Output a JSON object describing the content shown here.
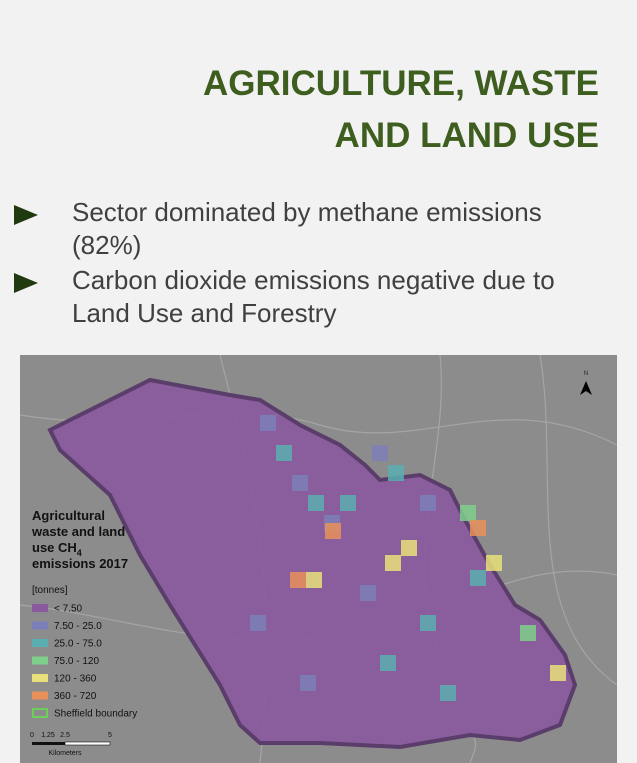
{
  "header": {
    "title_lines": [
      "AGRICULTURE, WASTE",
      "AND LAND USE"
    ]
  },
  "bullets": [
    "Sector dominated by methane emissions (82%)",
    "Carbon dioxide emissions negative due to Land Use and Forestry"
  ],
  "map": {
    "legend": {
      "title_before_subscript": "Agricultural waste and land use CH",
      "subscript": "4",
      "title_after_subscript": "emissions 2017",
      "units": "[tonnes]",
      "items": [
        {
          "label": "< 7.50",
          "color": "#8a5a9e"
        },
        {
          "label": "7.50 - 25.0",
          "color": "#7b7fb8"
        },
        {
          "label": "25.0 - 75.0",
          "color": "#5aaeb0"
        },
        {
          "label": "75.0 - 120",
          "color": "#7fcf8c"
        },
        {
          "label": "120 - 360",
          "color": "#e8e07a"
        },
        {
          "label": "360 - 720",
          "color": "#e8905a"
        }
      ],
      "boundary": {
        "label": "Sheffield boundary",
        "color": "#6ccf5a"
      }
    },
    "scale": {
      "ticks": [
        "0",
        "1.25",
        "2.5",
        "5"
      ],
      "unit": "Kilometers"
    },
    "north": "N"
  }
}
